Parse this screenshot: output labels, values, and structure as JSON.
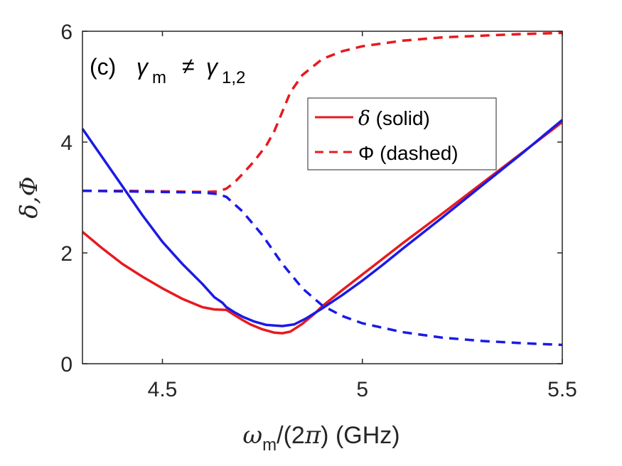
{
  "chart_data": {
    "type": "line",
    "panel_label": "(c)",
    "annotation": {
      "gamma": "γ",
      "gamma_sub": "m",
      "neq": "≠",
      "rhs": "γ",
      "rhs_sub": "1,2"
    },
    "xlabel": {
      "symbol": "ω",
      "sub": "m",
      "rest": "/(2",
      "pi": "π",
      "tail": ") (GHz)"
    },
    "ylabel": "δ,Φ",
    "xlim": [
      4.3,
      5.5
    ],
    "ylim": [
      0,
      6
    ],
    "xticks": [
      4.5,
      5,
      5.5
    ],
    "xtick_labels": [
      "4.5",
      "5",
      "5.5"
    ],
    "yticks": [
      0,
      2,
      4,
      6
    ],
    "ytick_labels": [
      "0",
      "2",
      "4",
      "6"
    ],
    "grid": false,
    "legend_position": "upper-right",
    "legend": [
      {
        "symbol": "δ",
        "text": " (solid)",
        "color": "#e8191e",
        "style": "solid"
      },
      {
        "symbol": "Φ",
        "text": " (dashed)",
        "color": "#e8191e",
        "style": "dashed"
      }
    ],
    "colors": {
      "red": "#e8191e",
      "blue": "#1a1ae6",
      "axis": "#262626"
    },
    "series": [
      {
        "color": "#e8191e",
        "style": "solid",
        "x": [
          4.3,
          4.35,
          4.4,
          4.45,
          4.5,
          4.55,
          4.6,
          4.63,
          4.66,
          4.68,
          4.7,
          4.72,
          4.75,
          4.78,
          4.8,
          4.82,
          4.85,
          4.88,
          4.9,
          4.95,
          5.0,
          5.05,
          5.1,
          5.2,
          5.3,
          5.4,
          5.5
        ],
        "y": [
          2.38,
          2.08,
          1.8,
          1.57,
          1.36,
          1.17,
          1.02,
          0.98,
          0.97,
          0.88,
          0.79,
          0.71,
          0.62,
          0.56,
          0.55,
          0.58,
          0.72,
          0.9,
          1.04,
          1.33,
          1.61,
          1.89,
          2.17,
          2.71,
          3.26,
          3.81,
          4.36
        ]
      },
      {
        "color": "#e8191e",
        "style": "dashed",
        "x": [
          4.3,
          4.4,
          4.5,
          4.6,
          4.64,
          4.66,
          4.68,
          4.7,
          4.73,
          4.76,
          4.78,
          4.8,
          4.82,
          4.85,
          4.9,
          4.95,
          5.0,
          5.1,
          5.2,
          5.3,
          5.4,
          5.5
        ],
        "y": [
          3.12,
          3.12,
          3.11,
          3.1,
          3.11,
          3.16,
          3.27,
          3.42,
          3.66,
          3.94,
          4.2,
          4.55,
          4.9,
          5.21,
          5.5,
          5.64,
          5.73,
          5.83,
          5.89,
          5.92,
          5.95,
          5.97
        ]
      },
      {
        "color": "#1a1ae6",
        "style": "solid",
        "x": [
          4.3,
          4.35,
          4.4,
          4.45,
          4.5,
          4.55,
          4.6,
          4.63,
          4.65,
          4.66,
          4.68,
          4.7,
          4.73,
          4.76,
          4.8,
          4.83,
          4.86,
          4.9,
          4.95,
          5.0,
          5.05,
          5.1,
          5.2,
          5.3,
          5.4,
          5.5
        ],
        "y": [
          4.24,
          3.72,
          3.2,
          2.68,
          2.2,
          1.8,
          1.44,
          1.2,
          1.1,
          1.02,
          0.93,
          0.85,
          0.76,
          0.7,
          0.68,
          0.71,
          0.82,
          1.0,
          1.24,
          1.5,
          1.78,
          2.07,
          2.64,
          3.22,
          3.8,
          4.4
        ]
      },
      {
        "color": "#1a1ae6",
        "style": "dashed",
        "x": [
          4.3,
          4.4,
          4.5,
          4.6,
          4.64,
          4.66,
          4.7,
          4.75,
          4.8,
          4.85,
          4.9,
          4.95,
          5.0,
          5.1,
          5.2,
          5.3,
          5.4,
          5.5
        ],
        "y": [
          3.12,
          3.11,
          3.1,
          3.09,
          3.06,
          3.01,
          2.75,
          2.32,
          1.8,
          1.36,
          1.05,
          0.86,
          0.73,
          0.57,
          0.47,
          0.41,
          0.37,
          0.34
        ]
      }
    ]
  }
}
